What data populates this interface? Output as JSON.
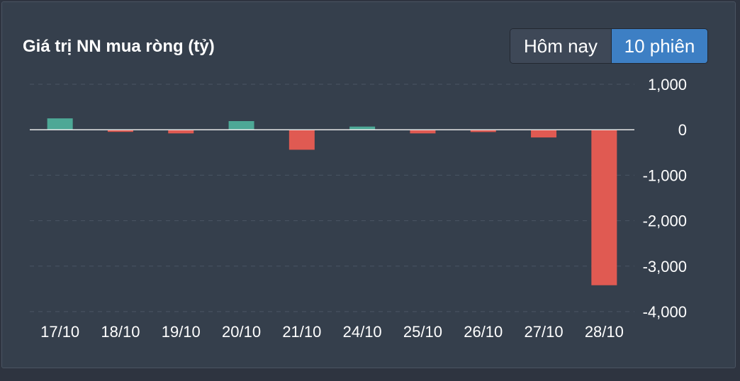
{
  "header": {
    "title": "Giá trị NN mua ròng (tỷ)"
  },
  "toggle": {
    "options": [
      "Hôm nay",
      "10 phiên"
    ],
    "selected": "10 phiên"
  },
  "colors": {
    "positive": "#4da896",
    "negative": "#e05a52",
    "zero_line": "#e8e8e8",
    "grid": "#4a5563",
    "text": "#ffffff",
    "toggle_active": "#3d7fc4"
  },
  "chart_data": {
    "type": "bar",
    "title": "Giá trị NN mua ròng (tỷ)",
    "categories": [
      "17/10",
      "18/10",
      "19/10",
      "20/10",
      "21/10",
      "24/10",
      "25/10",
      "26/10",
      "27/10",
      "28/10"
    ],
    "values": [
      250,
      -30,
      -80,
      190,
      -440,
      70,
      -80,
      -50,
      -170,
      -3420
    ],
    "ylim": [
      -4000,
      1000
    ],
    "yticks": [
      1000,
      0,
      -1000,
      -2000,
      -3000,
      -4000
    ],
    "ytick_labels": [
      "1,000",
      "0",
      "-1,000",
      "-2,000",
      "-3,000",
      "-4,000"
    ],
    "y_axis_side": "right",
    "grid": true,
    "xlabel": "",
    "ylabel": ""
  }
}
